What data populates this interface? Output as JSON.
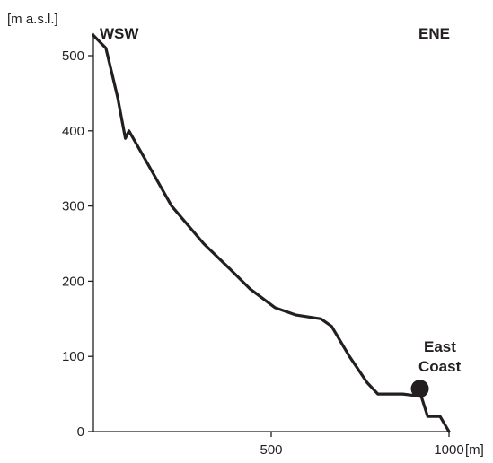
{
  "chart_data": {
    "type": "line",
    "title": "",
    "xlabel": "[m]",
    "ylabel": "[m a.s.l.]",
    "xlim": [
      0,
      1000
    ],
    "ylim": [
      0,
      530
    ],
    "x_ticks": [
      500,
      1000
    ],
    "x_tick_labels": [
      "500",
      "1000"
    ],
    "y_ticks": [
      0,
      100,
      200,
      300,
      400,
      500
    ],
    "y_tick_labels": [
      "0",
      "100",
      "200",
      "300",
      "400",
      "500"
    ],
    "grid": false,
    "series": [
      {
        "x": [
          0,
          35,
          68,
          90,
          100,
          160,
          220,
          310,
          380,
          440,
          510,
          570,
          640,
          670,
          720,
          770,
          800,
          870,
          905,
          920,
          940,
          975,
          1000
        ],
        "y": [
          527,
          510,
          445,
          390,
          400,
          350,
          300,
          250,
          218,
          190,
          165,
          155,
          150,
          140,
          100,
          65,
          50,
          50,
          48,
          50,
          20,
          20,
          0
        ]
      }
    ],
    "annotations": {
      "left_direction": "WSW",
      "right_direction": "ENE",
      "marker_label_line1": "East",
      "marker_label_line2": "Coast",
      "marker": {
        "x": 918,
        "y": 57
      }
    },
    "line_color": "#231f20"
  }
}
